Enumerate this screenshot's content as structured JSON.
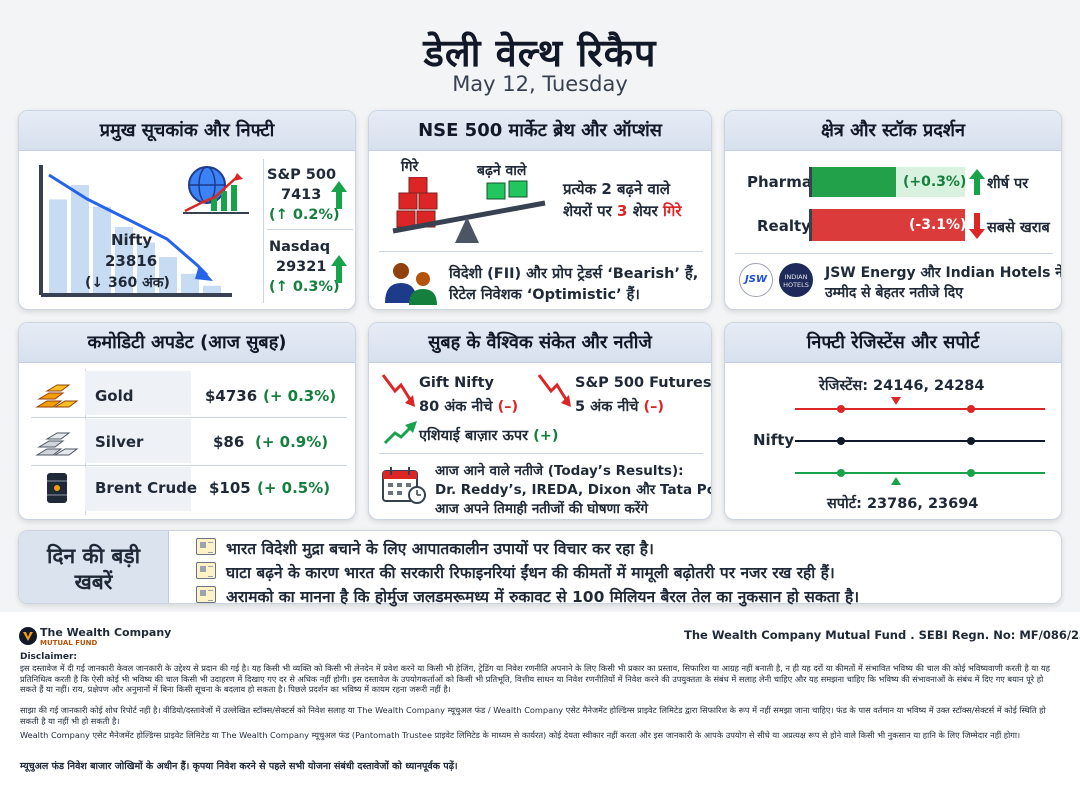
{
  "header": {
    "title": "डेली वेल्थ रिकैप",
    "date": "May 12, Tuesday"
  },
  "indices": {
    "heading": "प्रमुख सूचकांक और निफ्टी",
    "nifty": {
      "label": "Nifty",
      "value": "23816",
      "change": "(↓ 360 अंक)"
    },
    "sp500": {
      "label": "S&P 500",
      "value": "7413",
      "change": "(↑ 0.2%)"
    },
    "nasdaq": {
      "label": "Nasdaq",
      "value": "29321",
      "change": "(↑ 0.3%)"
    },
    "bar_levels": [
      0.78,
      0.9,
      0.72,
      0.55,
      0.42,
      0.3,
      0.16,
      0.06
    ]
  },
  "breadth": {
    "heading": "NSE 500 मार्केट ब्रेथ और ऑप्शंस",
    "fallen_label": "गिरे",
    "risen_label": "बढ़ने वाले",
    "ratio_line1": "प्रत्येक 2 बढ़ने वाले",
    "ratio_line2_a": "शेयरों पर",
    "ratio_line2_num": "3",
    "ratio_line2_b": "शेयर",
    "ratio_line2_fall": "गिरे",
    "sentiment_line1": "विदेशी (FII) और प्रोप ट्रेडर्स ‘Bearish’ हैं,",
    "sentiment_line2": "रिटेल निवेशक ‘Optimistic’ हैं।"
  },
  "sector": {
    "heading": "क्षेत्र और स्टॉक प्रदर्शन",
    "pharma": {
      "label": "Pharma",
      "value": "(+0.3%)",
      "tag": "शीर्ष पर"
    },
    "realty": {
      "label": "Realty",
      "value": "(-3.1%)",
      "tag": "सबसे खराब"
    },
    "jsw_logo": "JSW",
    "indian_hotels_logo_line1": "INDIAN",
    "indian_hotels_logo_line2": "HOTELS",
    "note_line1": "JSW Energy और Indian Hotels ने",
    "note_line2": "उम्मीद से बेहतर नतीजे दिए"
  },
  "commodity": {
    "heading": "कमोडिटी अपडेट (आज सुबह)",
    "items": [
      {
        "name": "Gold",
        "price": "$4736",
        "change": "(+ 0.3%)",
        "icon": "gold-bars-icon"
      },
      {
        "name": "Silver",
        "price": "$86",
        "change": "(+ 0.9%)",
        "icon": "silver-bars-icon"
      },
      {
        "name": "Brent Crude",
        "price": "$105",
        "change": "(+ 0.5%)",
        "icon": "oil-barrel-icon"
      }
    ]
  },
  "global": {
    "heading": "सुबह के वैश्विक संकेत और नतीजे",
    "gift_nifty": {
      "label": "Gift Nifty",
      "detail": "80 अंक नीचे",
      "sign": "(–)"
    },
    "sp_futures": {
      "label": "S&P 500 Futures",
      "detail": "5 अंक नीचे",
      "sign": "(–)"
    },
    "asia": {
      "label": "एशियाई बाज़ार ऊपर",
      "sign": "(+)"
    },
    "results_line1": "आज आने वाले नतीजे (Today’s Results):",
    "results_line2": "Dr. Reddy’s, IREDA, Dixon और Tata Power",
    "results_line3": "आज अपने तिमाही नतीजों की घोषणा करेंगे"
  },
  "levels": {
    "heading": "निफ्टी रेजिस्टेंस और सपोर्ट",
    "resistance": "रेजिस्टेंस: 24146, 24284",
    "nifty_label": "Nifty",
    "support": "सपोर्ट: 23786, 23694"
  },
  "news": {
    "heading_line1": "दिन की बड़ी",
    "heading_line2": "खबरें",
    "items": [
      "भारत विदेशी मुद्रा बचाने के लिए आपातकालीन उपायों पर विचार कर रहा है।",
      "घाटा बढ़ने के कारण भारत की सरकारी रिफाइनरियां ईंधन की कीमतों में मामूली बढ़ोतरी पर नजर रख रही हैं।",
      "अरामको का मानना है कि होर्मुज जलडमरूमध्य में रुकावट से 100 मिलियन बैरल तेल का नुकसान हो सकता है।"
    ]
  },
  "footer": {
    "logo_line1": "The Wealth Company",
    "logo_line2": "MUTUAL FUND",
    "regn": "The Wealth Company Mutual Fund . SEBI Regn. No: MF/086/25/12",
    "disclaimer_title": "Disclaimer:",
    "disclaimer_p1": "इस दस्तावेज में दी गई जानकारी केवल जानकारी के उद्देश्य से प्रदान की गई है। यह किसी भी व्यक्ति को किसी भी लेनदेन में प्रवेश करने या किसी भी हेजिंग, ट्रेडिंग या निवेश रणनीति अपनाने के लिए किसी भी प्रकार का प्रस्ताव, सिफारिश या आग्रह नहीं बनाती है, न ही यह दरों या कीमतों में संभावित भविष्य की चाल की कोई भविष्यवाणी करती है या यह प्रतिनिधित्व करती है कि ऐसी कोई भी भविष्य की चाल किसी भी उदाहरण में दिखाए गए दर से अधिक नहीं होगी। इस दस्तावेज के उपयोगकर्ताओं को किसी भी प्रतिभूति, वित्तीय साधन या निवेश रणनीतियों में निवेश करने की उपयुक्तता के संबंध में सलाह लेनी चाहिए और यह समझना चाहिए कि भविष्य की संभावनाओं के संबंध में दिए गए बयान पूरे हो सकते हैं या नहीं। राय, प्रक्षेपण और अनुमानों में बिना किसी सूचना के बदलाव हो सकता है। पिछले प्रदर्शन का भविष्य में कायम रहना जरूरी नहीं है।",
    "disclaimer_p2": "साझा की गई जानकारी कोई शोध रिपोर्ट नहीं है। वीडियो/दस्तावेजों में उल्लेखित स्टॉक्स/सेक्टर्स को निवेश सलाह या The Wealth Company म्यूचुअल फंड / Wealth Company एसेट मैनेजमेंट होल्डिंग्स प्राइवेट लिमिटेड द्वारा सिफारिश के रूप में नहीं समझा जाना चाहिए। फंड के पास वर्तमान या भविष्य में उक्त स्टॉक्स/सेक्टर्स में कोई स्थिति हो सकती है या नहीं भी हो सकती है।",
    "disclaimer_p3": "Wealth Company एसेट मैनेजमेंट होल्डिंग्स प्राइवेट लिमिटेड या The Wealth Company म्यूचुअल फंड (Pantomath Trustee प्राइवेट लिमिटेड के माध्यम से कार्यरत) कोई देयता स्वीकार नहीं करता और इस जानकारी के आपके उपयोग से सीधे या अप्रत्यक्ष रूप से होने वाले किसी भी नुकसान या हानि के लिए जिम्मेदार नहीं होगा।",
    "risk_line": "म्यूचुअल फंड निवेश बाजार जोखिमों के अधीन हैं। कृपया निवेश करने से पहले सभी योजना संबंधी दस्तावेजों को ध्यानपूर्वक पढ़ें।"
  },
  "colors": {
    "green": "#16a34a",
    "red": "#dc2626",
    "header_bg": "#dbe3ef"
  }
}
